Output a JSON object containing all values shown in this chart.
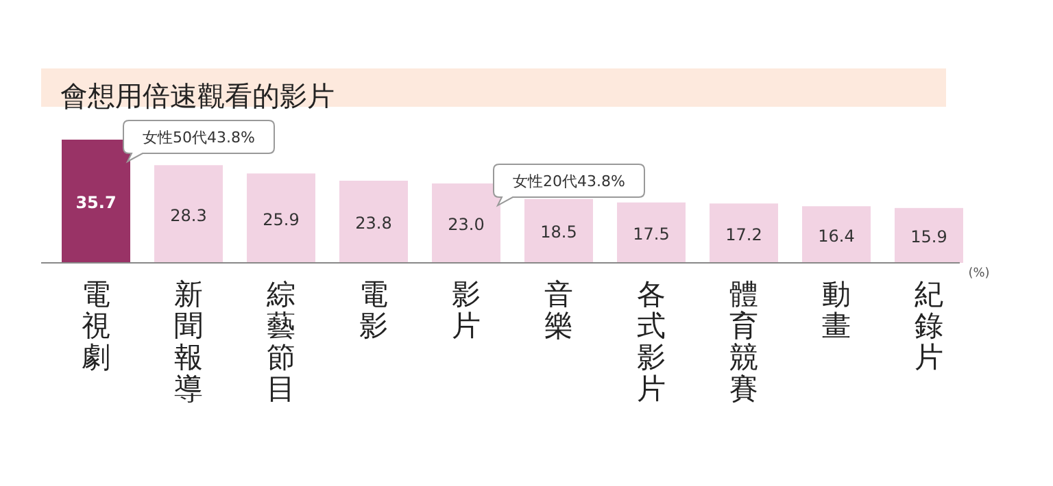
{
  "chart_data": {
    "type": "bar",
    "title": "會想用倍速觀看的影片",
    "categories": [
      "電視劇",
      "新聞報導",
      "綜藝節目",
      "電影",
      "影片",
      "音樂",
      "各式影片",
      "體育競賽",
      "動畫",
      "紀錄片"
    ],
    "values": [
      35.7,
      28.3,
      25.9,
      23.8,
      23.0,
      18.5,
      17.5,
      17.2,
      16.4,
      15.9
    ],
    "colors": [
      "#993366",
      "#f2d3e3",
      "#f2d3e3",
      "#f2d3e3",
      "#f2d3e3",
      "#f2d3e3",
      "#f2d3e3",
      "#f2d3e3",
      "#f2d3e3",
      "#f2d3e3"
    ],
    "value_labels": [
      "35.7",
      "28.3",
      "25.9",
      "23.8",
      "23.0",
      "18.5",
      "17.5",
      "17.2",
      "16.4",
      "15.9"
    ],
    "annotations": [
      "女性50代43.8%",
      "女性20代43.8%",
      "(%)"
    ]
  }
}
